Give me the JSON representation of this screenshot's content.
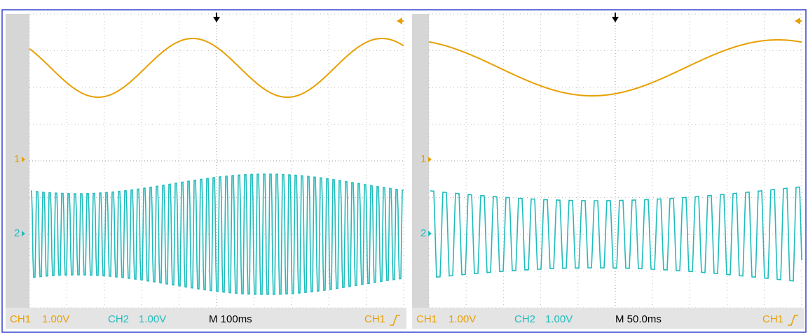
{
  "panels": [
    {
      "ch1_label": "CH1",
      "ch1_scale": "1.00V",
      "ch2_label": "CH2",
      "ch2_scale": "1.00V",
      "timebase": "M 100ms",
      "trigger": "CH1",
      "ch1_marker": "1",
      "ch2_marker": "2"
    },
    {
      "ch1_label": "CH1",
      "ch1_scale": "1.00V",
      "ch2_label": "CH2",
      "ch2_scale": "1.00V",
      "timebase": "M 50.0ms",
      "trigger": "CH1",
      "ch1_marker": "1",
      "ch2_marker": "2"
    }
  ]
}
